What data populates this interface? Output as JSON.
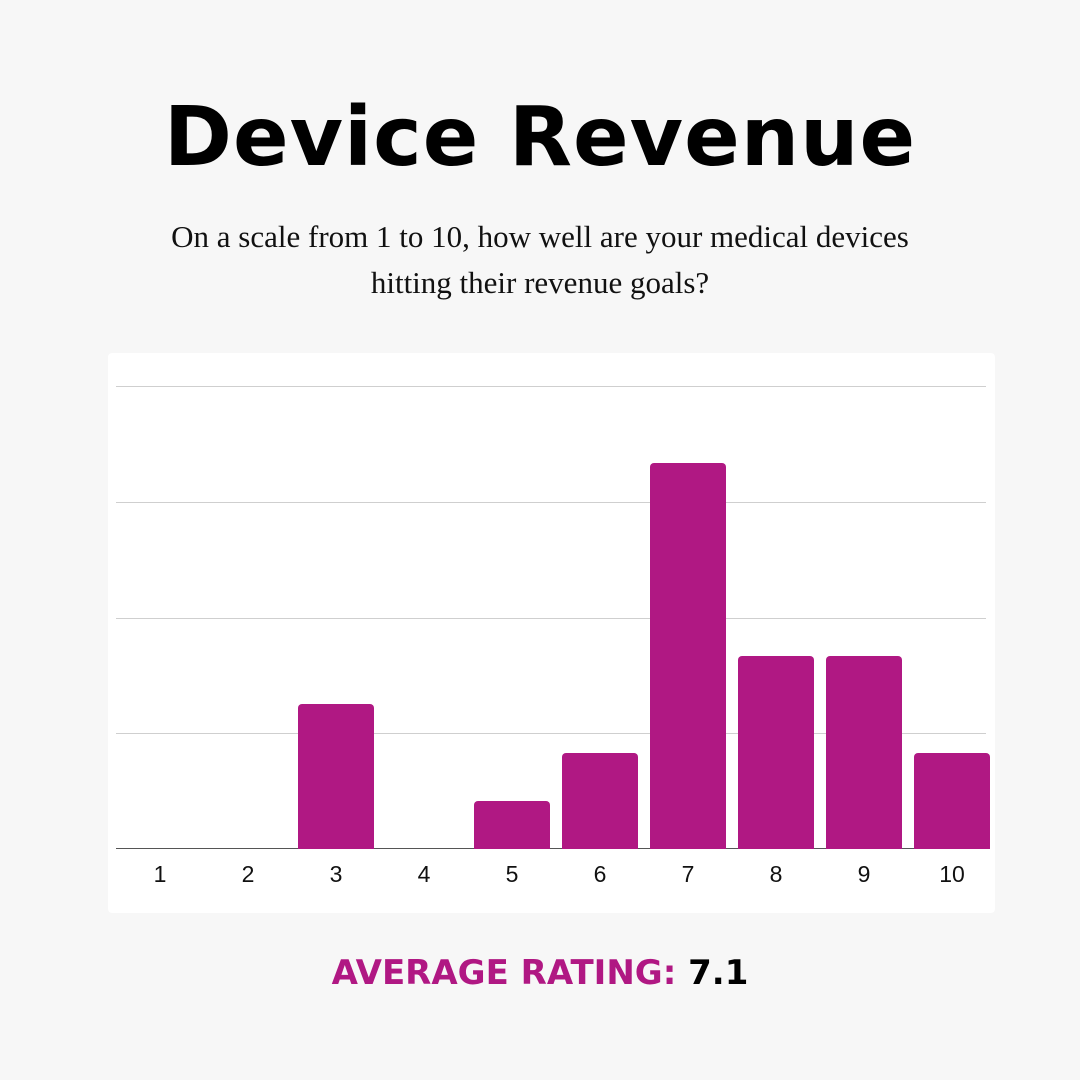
{
  "title": "Device Revenue",
  "subtitle": "On a scale from 1 to 10, how well are your medical devices hitting their revenue goals?",
  "average": {
    "label": "AVERAGE RATING:",
    "value": "7.1"
  },
  "colors": {
    "bar": "#b01883",
    "accent": "#b01883",
    "background": "#f7f7f7",
    "card": "#ffffff",
    "gridline": "#cfcfcf"
  },
  "chart_data": {
    "type": "bar",
    "title": "Device Revenue",
    "subtitle": "On a scale from 1 to 10, how well are your medical devices hitting their revenue goals?",
    "xlabel": "",
    "ylabel": "",
    "categories": [
      "1",
      "2",
      "3",
      "4",
      "5",
      "6",
      "7",
      "8",
      "9",
      "10"
    ],
    "values": [
      0,
      0,
      3,
      0,
      1,
      2,
      8,
      4,
      4,
      2
    ],
    "ylim": [
      0,
      9.6
    ],
    "gridlines": 4,
    "grid": true,
    "y_tick_labels_visible": false,
    "legend": null,
    "annotations": [
      "AVERAGE RATING: 7.1"
    ]
  }
}
